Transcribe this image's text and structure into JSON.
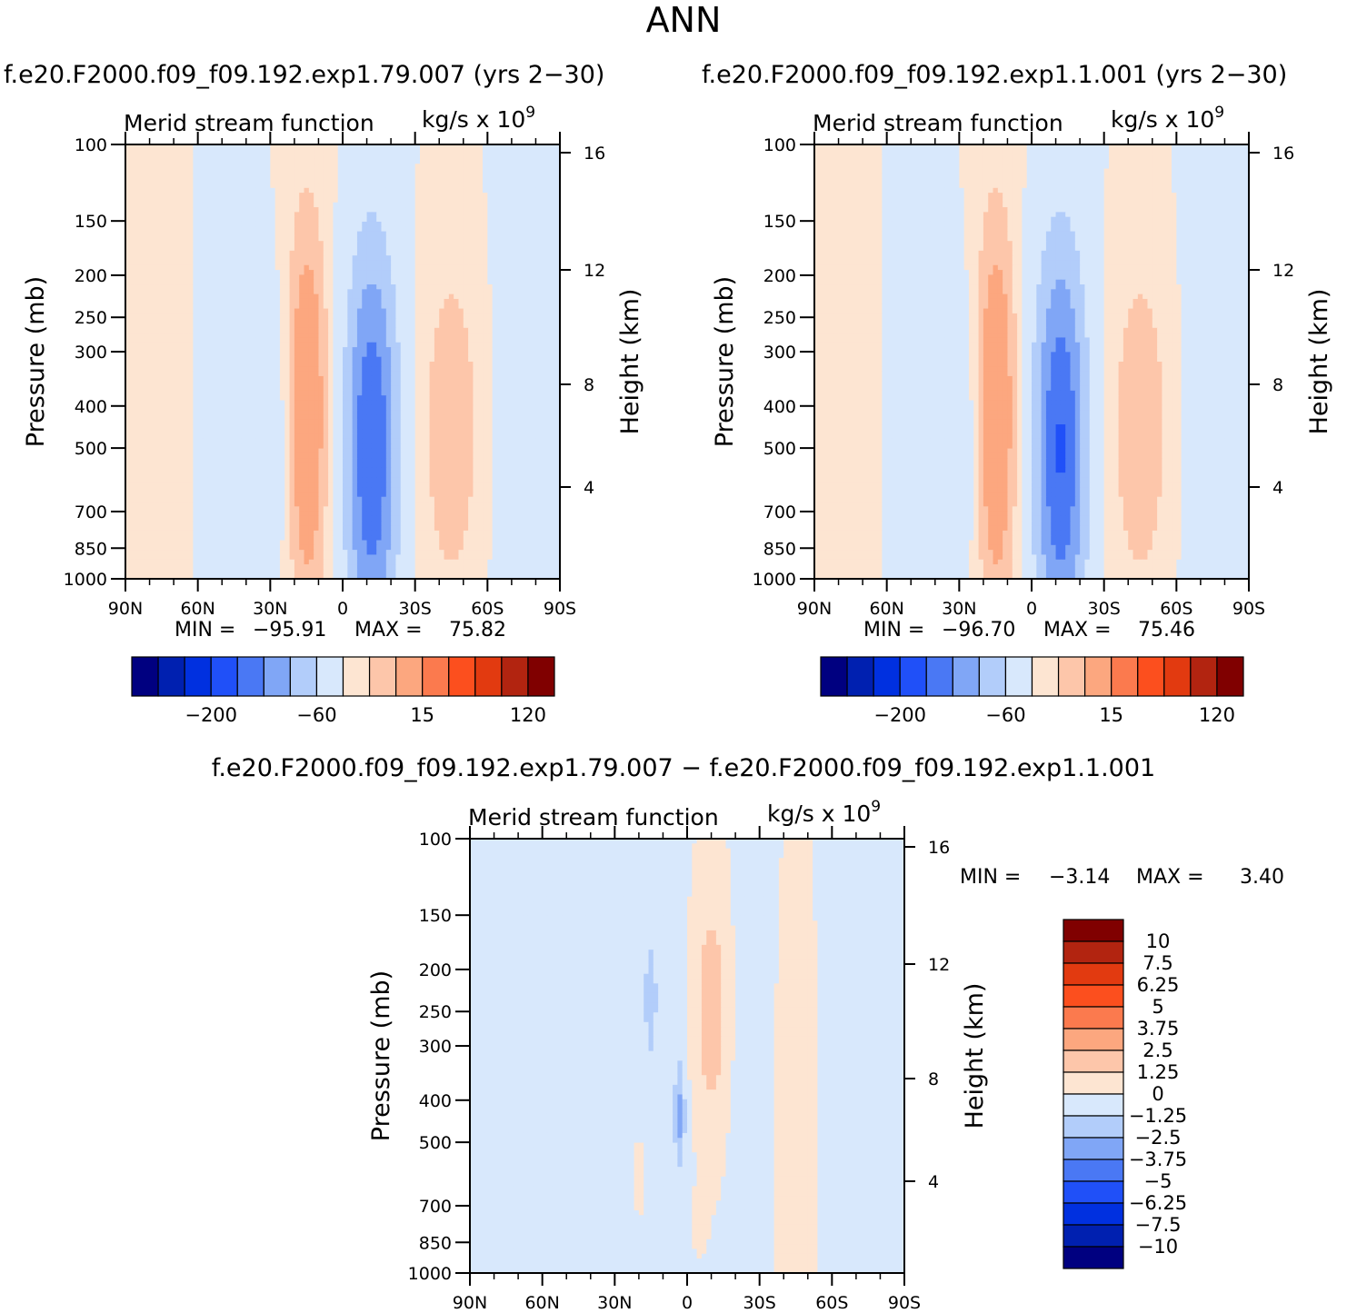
{
  "page": {
    "title": "ANN",
    "case_a_title": "f.e20.F2000.f09_f09.192.exp1.79.007 (yrs 2−30)",
    "case_b_title": "f.e20.F2000.f09_f09.192.exp1.1.001 (yrs 2−30)",
    "diff_title": "f.e20.F2000.f09_f09.192.exp1.79.007 − f.e20.F2000.f09_f09.192.exp1.1.001"
  },
  "chart_data": [
    {
      "type": "heatmap",
      "title": "Merid stream function",
      "units": "kg/s x 10",
      "units_exp": "9",
      "ylabel": "Pressure (mb)",
      "ylabel_right": "Height (km)",
      "x_ticks": [
        "90N",
        "60N",
        "30N",
        "0",
        "30S",
        "60S",
        "90S"
      ],
      "xlim": [
        90,
        -90
      ],
      "y_ticks": [
        100,
        150,
        200,
        250,
        300,
        400,
        500,
        700,
        850,
        1000
      ],
      "ylim": [
        1000,
        100
      ],
      "y_scale": "log",
      "height_ticks": [
        4,
        8,
        12,
        16
      ],
      "min_label": "MIN =",
      "max_label": "MAX =",
      "min": "−95.91",
      "max": "75.82",
      "colorbar": {
        "colors": [
          "#000080",
          "#0020b0",
          "#0030e0",
          "#2050f8",
          "#4a78f4",
          "#80a6f6",
          "#b2cdfa",
          "#d8e8fc",
          "#fde5d2",
          "#fdc6aa",
          "#fca77f",
          "#fb7a4e",
          "#fc4f1e",
          "#e23a10",
          "#b22410",
          "#800000"
        ],
        "labels": [
          "−200",
          "−60",
          "15",
          "120"
        ]
      },
      "features": [
        {
          "lat": 32,
          "p": 480,
          "sx": 9,
          "sy": 0.55,
          "v": -20
        },
        {
          "lat": 15,
          "p": 420,
          "sx": 6,
          "sy": 0.75,
          "v": 55
        },
        {
          "lat": -12,
          "p": 500,
          "sx": 7.5,
          "sy": 0.75,
          "v": -80
        },
        {
          "lat": -45,
          "p": 450,
          "sx": 8,
          "sy": 0.6,
          "v": 30
        },
        {
          "lat": 70,
          "p": 300,
          "sx": 9,
          "sy": 1.6,
          "v": 5
        },
        {
          "lat": 55,
          "p": 300,
          "sx": 7,
          "sy": 1.6,
          "v": -5
        },
        {
          "lat": -72,
          "p": 500,
          "sx": 7,
          "sy": 1.2,
          "v": -8
        }
      ]
    },
    {
      "type": "heatmap",
      "title": "Merid stream function",
      "units": "kg/s x 10",
      "units_exp": "9",
      "ylabel": "Pressure (mb)",
      "ylabel_right": "Height (km)",
      "x_ticks": [
        "90N",
        "60N",
        "30N",
        "0",
        "30S",
        "60S",
        "90S"
      ],
      "xlim": [
        90,
        -90
      ],
      "y_ticks": [
        100,
        150,
        200,
        250,
        300,
        400,
        500,
        700,
        850,
        1000
      ],
      "ylim": [
        1000,
        100
      ],
      "y_scale": "log",
      "height_ticks": [
        4,
        8,
        12,
        16
      ],
      "min_label": "MIN =",
      "max_label": "MAX =",
      "min": "−96.70",
      "max": "75.46",
      "colorbar": {
        "colors": [
          "#000080",
          "#0020b0",
          "#0030e0",
          "#2050f8",
          "#4a78f4",
          "#80a6f6",
          "#b2cdfa",
          "#d8e8fc",
          "#fde5d2",
          "#fdc6aa",
          "#fca77f",
          "#fb7a4e",
          "#fc4f1e",
          "#e23a10",
          "#b22410",
          "#800000"
        ],
        "labels": [
          "−200",
          "−60",
          "15",
          "120"
        ]
      },
      "features": [
        {
          "lat": 32,
          "p": 480,
          "sx": 9,
          "sy": 0.55,
          "v": -20
        },
        {
          "lat": 15,
          "p": 420,
          "sx": 6,
          "sy": 0.75,
          "v": 55
        },
        {
          "lat": -12,
          "p": 500,
          "sx": 7.5,
          "sy": 0.75,
          "v": -82
        },
        {
          "lat": -45,
          "p": 450,
          "sx": 8,
          "sy": 0.6,
          "v": 30
        },
        {
          "lat": 70,
          "p": 300,
          "sx": 9,
          "sy": 1.6,
          "v": 5
        },
        {
          "lat": 55,
          "p": 300,
          "sx": 7,
          "sy": 1.6,
          "v": -5
        },
        {
          "lat": -72,
          "p": 500,
          "sx": 7,
          "sy": 1.2,
          "v": -8
        }
      ]
    },
    {
      "type": "heatmap",
      "title": "Merid stream function",
      "units": "kg/s x 10",
      "units_exp": "9",
      "ylabel": "Pressure (mb)",
      "ylabel_right": "Height (km)",
      "x_ticks": [
        "90N",
        "60N",
        "30N",
        "0",
        "30S",
        "60S",
        "90S"
      ],
      "xlim": [
        90,
        -90
      ],
      "y_ticks": [
        100,
        150,
        200,
        250,
        300,
        400,
        500,
        700,
        850,
        1000
      ],
      "ylim": [
        1000,
        100
      ],
      "y_scale": "log",
      "height_ticks": [
        4,
        8,
        12,
        16
      ],
      "min_label": "MIN =",
      "max_label": "MAX =",
      "min": "−3.14",
      "max": "3.40",
      "colorbar": {
        "colors": [
          "#000080",
          "#0020b0",
          "#0030e0",
          "#2050f8",
          "#4a78f4",
          "#80a6f6",
          "#b2cdfa",
          "#d8e8fc",
          "#fde5d2",
          "#fdc6aa",
          "#fca77f",
          "#fb7a4e",
          "#fc4f1e",
          "#e23a10",
          "#b22410",
          "#800000"
        ],
        "labels": [
          "10",
          "7.5",
          "6.25",
          "5",
          "3.75",
          "2.5",
          "1.25",
          "0",
          "−1.25",
          "−2.5",
          "−3.75",
          "−5",
          "−6.25",
          "−7.5",
          "−10"
        ]
      },
      "features": [
        {
          "lat": 25,
          "p": 450,
          "sx": 18,
          "sy": 1.4,
          "v": -0.7
        },
        {
          "lat": -10,
          "p": 250,
          "sx": 5,
          "sy": 0.45,
          "v": 2.2
        },
        {
          "lat": 15,
          "p": 230,
          "sx": 2,
          "sy": 0.25,
          "v": -1.3
        },
        {
          "lat": 3,
          "p": 430,
          "sx": 1.6,
          "sy": 0.2,
          "v": -2.6
        },
        {
          "lat": 20,
          "p": 600,
          "sx": 1.8,
          "sy": 0.25,
          "v": 1.0
        },
        {
          "lat": -5,
          "p": 760,
          "sx": 1.8,
          "sy": 0.1,
          "v": 1.0
        },
        {
          "lat": -42,
          "p": 500,
          "sx": 3,
          "sy": 0.6,
          "v": 0.7
        },
        {
          "lat": -70,
          "p": 400,
          "sx": 4,
          "sy": 1.4,
          "v": -0.8
        },
        {
          "lat": -25,
          "p": 500,
          "sx": 6,
          "sy": 1.2,
          "v": -0.6
        }
      ]
    }
  ]
}
